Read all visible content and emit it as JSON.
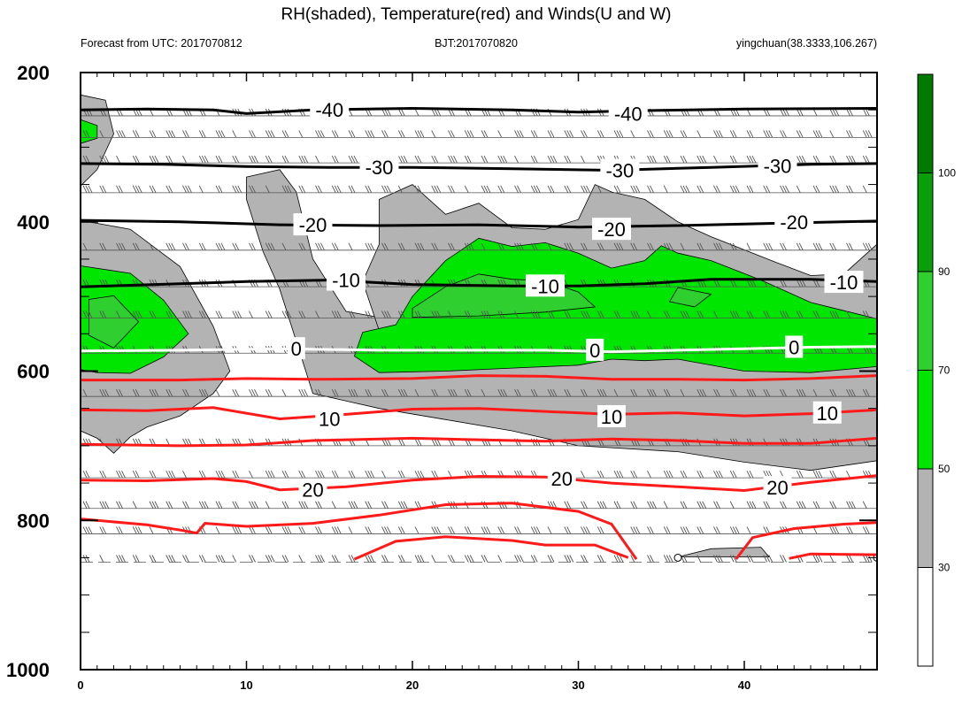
{
  "header": {
    "title": "RH(shaded), Temperature(red) and Winds(U and W)",
    "left": "Forecast from UTC: 2017070812",
    "center": "BJT:2017070820",
    "right": "yingchuan(38.3333,106.267)"
  },
  "colors": {
    "gray": "#b3b3b3",
    "green50": "#00e600",
    "green70": "#2ecf2e",
    "green90": "#0a9e0a",
    "green100": "#007a00",
    "warm": "#ff1a1a",
    "cold": "#000000",
    "freezing": "#ffffff"
  },
  "chart_data": {
    "type": "contour",
    "title": "RH(shaded), Temperature(red) and Winds(U and W)",
    "x_ticks": [
      "0",
      "10",
      "20",
      "30",
      "40"
    ],
    "y_ticks": [
      "200",
      "400",
      "600",
      "800",
      "1000"
    ],
    "xlim": [
      0,
      48
    ],
    "ylim": [
      200,
      1000
    ],
    "y_inverted": true,
    "colorbar": {
      "labels": [
        "30",
        "50",
        "70",
        "90",
        "100"
      ],
      "levels": [
        30,
        50,
        70,
        90,
        100
      ],
      "colors": [
        "#ffffff",
        "#b3b3b3",
        "#00e600",
        "#2ecf2e",
        "#0a9e0a",
        "#007a00"
      ]
    },
    "temperature_contours": [
      {
        "value": -40,
        "label": "-40",
        "color": "cold",
        "points": [
          [
            0,
            250
          ],
          [
            4,
            249
          ],
          [
            8,
            250
          ],
          [
            10,
            255
          ],
          [
            14,
            250
          ],
          [
            20,
            248
          ],
          [
            26,
            250
          ],
          [
            30,
            253
          ],
          [
            34,
            251
          ],
          [
            40,
            249
          ],
          [
            48,
            248
          ]
        ],
        "labels_at": [
          [
            15,
            250
          ],
          [
            33,
            255
          ]
        ]
      },
      {
        "value": -30,
        "label": "-30",
        "color": "cold",
        "points": [
          [
            0,
            322
          ],
          [
            5,
            323
          ],
          [
            10,
            326
          ],
          [
            15,
            327
          ],
          [
            20,
            327
          ],
          [
            26,
            329
          ],
          [
            32,
            331
          ],
          [
            38,
            327
          ],
          [
            44,
            323
          ],
          [
            48,
            322
          ]
        ],
        "labels_at": [
          [
            18,
            327
          ],
          [
            32.5,
            331
          ],
          [
            42,
            325
          ]
        ]
      },
      {
        "value": -20,
        "label": "-20",
        "color": "cold",
        "points": [
          [
            0,
            398
          ],
          [
            6,
            400
          ],
          [
            12,
            404
          ],
          [
            18,
            405
          ],
          [
            24,
            404
          ],
          [
            30,
            407
          ],
          [
            36,
            405
          ],
          [
            42,
            402
          ],
          [
            48,
            399
          ]
        ],
        "labels_at": [
          [
            14,
            404
          ],
          [
            32,
            410
          ],
          [
            43,
            400
          ]
        ]
      },
      {
        "value": -10,
        "label": "-10",
        "color": "cold",
        "points": [
          [
            0,
            487
          ],
          [
            6,
            483
          ],
          [
            10,
            480
          ],
          [
            15,
            478
          ],
          [
            20,
            484
          ],
          [
            26,
            486
          ],
          [
            30,
            486
          ],
          [
            34,
            483
          ],
          [
            38,
            477
          ],
          [
            44,
            477
          ],
          [
            48,
            480
          ]
        ],
        "labels_at": [
          [
            16,
            478
          ],
          [
            28,
            486
          ],
          [
            46,
            481
          ]
        ]
      },
      {
        "value": 0,
        "label": "0",
        "color": "freezing",
        "points": [
          [
            0,
            573
          ],
          [
            6,
            572
          ],
          [
            12,
            570
          ],
          [
            18,
            572
          ],
          [
            22,
            572
          ],
          [
            28,
            572
          ],
          [
            32,
            574
          ],
          [
            36,
            572
          ],
          [
            40,
            570
          ],
          [
            44,
            568
          ],
          [
            48,
            567
          ]
        ],
        "labels_at": [
          [
            13,
            570
          ],
          [
            31,
            572
          ],
          [
            43,
            568
          ]
        ]
      },
      {
        "value": 10,
        "label": "10",
        "color": "warm",
        "points": [
          [
            0,
            652
          ],
          [
            4,
            653
          ],
          [
            8,
            649
          ],
          [
            12,
            664
          ],
          [
            16,
            658
          ],
          [
            20,
            651
          ],
          [
            24,
            650
          ],
          [
            28,
            654
          ],
          [
            32,
            658
          ],
          [
            36,
            656
          ],
          [
            40,
            660
          ],
          [
            44,
            657
          ],
          [
            48,
            652
          ]
        ],
        "labels_at": [
          [
            15,
            664
          ],
          [
            32,
            661
          ],
          [
            45,
            656
          ]
        ]
      },
      {
        "value": 20,
        "label": "20",
        "color": "warm",
        "points": [
          [
            0,
            746
          ],
          [
            4,
            747
          ],
          [
            8,
            744
          ],
          [
            10,
            748
          ],
          [
            12,
            759
          ],
          [
            16,
            755
          ],
          [
            20,
            746
          ],
          [
            24,
            741
          ],
          [
            28,
            742
          ],
          [
            32,
            750
          ],
          [
            36,
            755
          ],
          [
            40,
            760
          ],
          [
            44,
            749
          ],
          [
            48,
            740
          ]
        ],
        "labels_at": [
          [
            14,
            759
          ],
          [
            29,
            744
          ],
          [
            42,
            756
          ]
        ]
      }
    ],
    "extra_warm_lines": [
      {
        "points": [
          [
            0,
            612
          ],
          [
            6,
            612
          ],
          [
            10,
            610
          ],
          [
            14,
            611
          ],
          [
            20,
            610
          ],
          [
            24,
            606
          ],
          [
            28,
            607
          ],
          [
            32,
            611
          ],
          [
            36,
            611
          ],
          [
            40,
            612
          ],
          [
            44,
            610
          ],
          [
            48,
            606
          ]
        ]
      },
      {
        "points": [
          [
            0,
            698
          ],
          [
            6,
            700
          ],
          [
            10,
            699
          ],
          [
            14,
            693
          ],
          [
            20,
            690
          ],
          [
            24,
            692
          ],
          [
            28,
            694
          ],
          [
            32,
            691
          ],
          [
            36,
            693
          ],
          [
            40,
            697
          ],
          [
            44,
            697
          ],
          [
            48,
            690
          ]
        ]
      },
      {
        "points": [
          [
            0,
            798
          ],
          [
            4,
            806
          ],
          [
            6,
            813
          ],
          [
            7,
            817
          ],
          [
            7.5,
            804
          ],
          [
            10,
            808
          ],
          [
            14,
            804
          ],
          [
            18,
            793
          ],
          [
            22,
            779
          ],
          [
            26,
            777
          ],
          [
            30,
            788
          ],
          [
            32,
            805
          ],
          [
            33.5,
            852
          ]
        ]
      },
      {
        "points": [
          [
            16.5,
            852
          ],
          [
            19,
            828
          ],
          [
            22,
            822
          ],
          [
            26,
            827
          ],
          [
            28,
            833
          ],
          [
            31,
            833
          ],
          [
            33,
            850
          ]
        ]
      },
      {
        "points": [
          [
            39.5,
            852
          ],
          [
            40.5,
            823
          ],
          [
            43,
            811
          ],
          [
            46,
            805
          ],
          [
            48,
            803
          ]
        ]
      },
      {
        "points": [
          [
            42.7,
            851
          ],
          [
            44,
            845
          ],
          [
            48,
            846
          ]
        ]
      }
    ],
    "rh_regions": [
      {
        "color": "gray",
        "points": [
          [
            0,
            230
          ],
          [
            1.5,
            237
          ],
          [
            2,
            282
          ],
          [
            1,
            330
          ],
          [
            0,
            352
          ]
        ]
      },
      {
        "color": "gray",
        "points": [
          [
            0,
            398
          ],
          [
            3,
            410
          ],
          [
            6,
            460
          ],
          [
            8,
            540
          ],
          [
            9,
            600
          ],
          [
            8,
            630
          ],
          [
            6,
            660
          ],
          [
            4,
            675
          ],
          [
            3,
            688
          ],
          [
            2,
            710
          ],
          [
            1,
            690
          ],
          [
            0,
            680
          ]
        ]
      },
      {
        "color": "gray",
        "points": [
          [
            10,
            340
          ],
          [
            12,
            330
          ],
          [
            13,
            360
          ],
          [
            14,
            450
          ],
          [
            16,
            520
          ],
          [
            20,
            536
          ],
          [
            26,
            550
          ],
          [
            32,
            560
          ],
          [
            38,
            560
          ],
          [
            43,
            560
          ],
          [
            48,
            500
          ],
          [
            48,
            720
          ],
          [
            44,
            733
          ],
          [
            40,
            722
          ],
          [
            36,
            708
          ],
          [
            30,
            700
          ],
          [
            26,
            680
          ],
          [
            22,
            665
          ],
          [
            18,
            650
          ],
          [
            14,
            630
          ],
          [
            13,
            560
          ],
          [
            12,
            490
          ],
          [
            11,
            440
          ],
          [
            10,
            370
          ]
        ]
      },
      {
        "color": "gray",
        "points": [
          [
            18,
            370
          ],
          [
            20,
            350
          ],
          [
            22,
            390
          ],
          [
            24,
            375
          ],
          [
            26,
            408
          ],
          [
            28,
            410
          ],
          [
            30,
            397
          ],
          [
            31,
            350
          ],
          [
            32,
            360
          ],
          [
            34,
            370
          ],
          [
            36,
            400
          ],
          [
            38,
            420
          ],
          [
            42,
            455
          ],
          [
            44,
            472
          ],
          [
            46,
            470
          ],
          [
            48,
            430
          ],
          [
            48,
            540
          ],
          [
            44,
            556
          ],
          [
            40,
            555
          ],
          [
            36,
            550
          ],
          [
            30,
            555
          ],
          [
            24,
            550
          ],
          [
            18,
            546
          ],
          [
            17,
            480
          ],
          [
            18,
            430
          ]
        ]
      },
      {
        "color": "gray",
        "points": [
          [
            36,
            849
          ],
          [
            38,
            838
          ],
          [
            41,
            836
          ],
          [
            41.5,
            849
          ]
        ]
      },
      {
        "color": "green50",
        "points": [
          [
            0,
            263
          ],
          [
            1,
            271
          ],
          [
            1,
            288
          ],
          [
            0,
            295
          ]
        ]
      },
      {
        "color": "green50",
        "points": [
          [
            0,
            459
          ],
          [
            3,
            469
          ],
          [
            5,
            505
          ],
          [
            6.5,
            550
          ],
          [
            5,
            581
          ],
          [
            3,
            603
          ],
          [
            1,
            602
          ],
          [
            0,
            598
          ]
        ]
      },
      {
        "color": "green50",
        "points": [
          [
            17,
            548
          ],
          [
            19,
            538
          ],
          [
            20,
            500
          ],
          [
            22,
            452
          ],
          [
            24,
            422
          ],
          [
            26,
            433
          ],
          [
            28,
            428
          ],
          [
            30,
            442
          ],
          [
            32,
            462
          ],
          [
            34,
            452
          ],
          [
            35,
            432
          ],
          [
            36,
            442
          ],
          [
            38,
            452
          ],
          [
            41,
            478
          ],
          [
            44,
            508
          ],
          [
            46,
            519
          ],
          [
            48,
            530
          ],
          [
            48,
            594
          ],
          [
            44,
            602
          ],
          [
            40,
            600
          ],
          [
            36,
            584
          ],
          [
            34,
            586
          ],
          [
            32,
            584
          ],
          [
            30,
            592
          ],
          [
            26,
            596
          ],
          [
            22,
            600
          ],
          [
            18,
            602
          ],
          [
            16.5,
            580
          ]
        ]
      },
      {
        "color": "green70",
        "points": [
          [
            0.5,
            504
          ],
          [
            2,
            499
          ],
          [
            3.5,
            534
          ],
          [
            2,
            569
          ],
          [
            0.5,
            552
          ]
        ]
      },
      {
        "color": "green70",
        "points": [
          [
            20,
            516
          ],
          [
            22,
            487
          ],
          [
            24,
            470
          ],
          [
            26,
            477
          ],
          [
            28,
            479
          ],
          [
            30,
            494
          ],
          [
            31,
            514
          ],
          [
            28,
            521
          ],
          [
            24,
            526
          ],
          [
            20,
            528
          ]
        ]
      },
      {
        "color": "green70",
        "points": [
          [
            36,
            488
          ],
          [
            38,
            497
          ],
          [
            37,
            514
          ],
          [
            35.5,
            507
          ]
        ]
      }
    ],
    "wind_levels": [
      258,
      287,
      321,
      361,
      438,
      487,
      529,
      576,
      634,
      700,
      743,
      784,
      818,
      856
    ],
    "wind_x_count": 49
  }
}
